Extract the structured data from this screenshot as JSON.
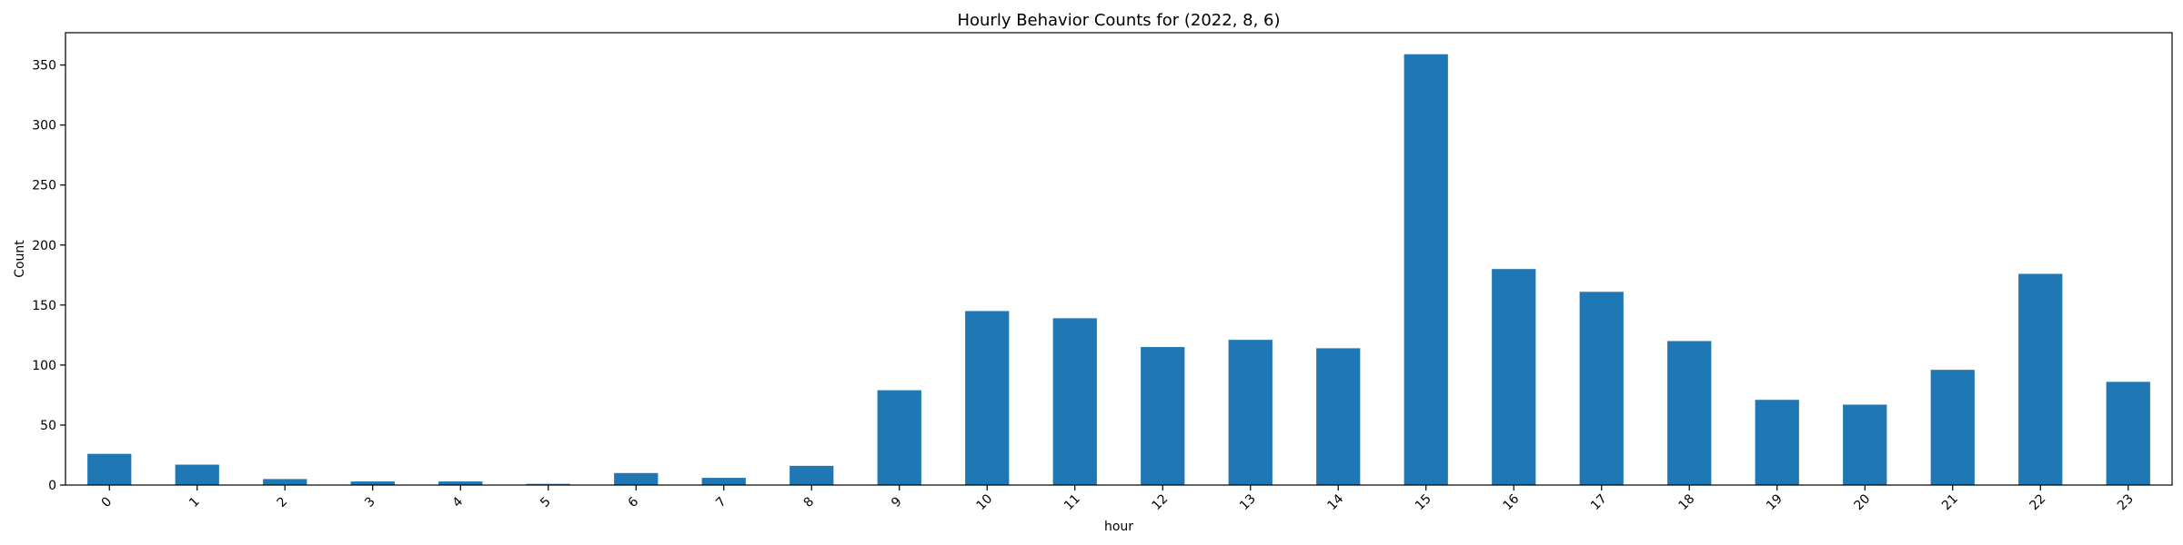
{
  "chart_data": {
    "type": "bar",
    "title": "Hourly Behavior Counts for (2022, 8, 6)",
    "xlabel": "hour",
    "ylabel": "Count",
    "categories": [
      "0",
      "1",
      "2",
      "3",
      "4",
      "5",
      "6",
      "7",
      "8",
      "9",
      "10",
      "11",
      "12",
      "13",
      "14",
      "15",
      "16",
      "17",
      "18",
      "19",
      "20",
      "21",
      "22",
      "23"
    ],
    "values": [
      26,
      17,
      5,
      3,
      3,
      1,
      10,
      6,
      16,
      79,
      145,
      139,
      115,
      121,
      114,
      359,
      180,
      161,
      120,
      71,
      67,
      96,
      176,
      86
    ],
    "ylim": [
      0,
      376.95
    ],
    "yticks": [
      0,
      50,
      100,
      150,
      200,
      250,
      300,
      350
    ],
    "grid": false,
    "legend": "none",
    "xtick_rotation": 45,
    "colors": {
      "bar": "#1f77b4"
    }
  }
}
